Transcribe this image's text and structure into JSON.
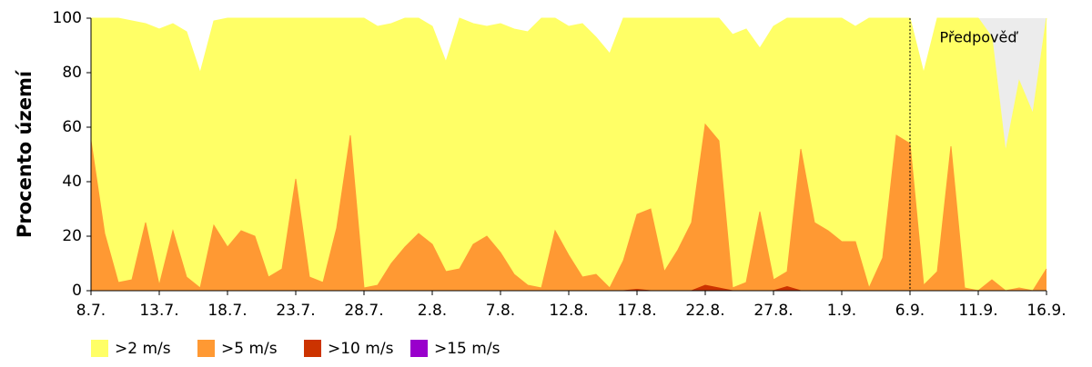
{
  "chart_data": {
    "type": "area",
    "y_label": "Procento území",
    "annotation": "Předpověď",
    "categories": [
      "8.7.",
      null,
      null,
      null,
      null,
      "13.7.",
      null,
      null,
      null,
      null,
      "18.7.",
      null,
      null,
      null,
      null,
      "23.7.",
      null,
      null,
      null,
      null,
      "28.7.",
      null,
      null,
      null,
      null,
      "2.8.",
      null,
      null,
      null,
      null,
      "7.8.",
      null,
      null,
      null,
      null,
      "12.8.",
      null,
      null,
      null,
      null,
      "17.8.",
      null,
      null,
      null,
      null,
      "22.8.",
      null,
      null,
      null,
      null,
      "27.8.",
      null,
      null,
      null,
      null,
      "1.9.",
      null,
      null,
      null,
      null,
      "6.9.",
      null,
      null,
      null,
      null,
      "11.9.",
      null,
      null,
      null,
      null,
      "16.9."
    ],
    "series": [
      {
        "name": ">2 m/s",
        "color": "#ffff66",
        "values": [
          100,
          100,
          100,
          99,
          98,
          96,
          98,
          95,
          80,
          99,
          100,
          100,
          100,
          100,
          100,
          100,
          100,
          100,
          100,
          100,
          100,
          97,
          98,
          100,
          100,
          97,
          84,
          100,
          98,
          97,
          98,
          96,
          95,
          100,
          100,
          97,
          98,
          93,
          87,
          100,
          100,
          100,
          100,
          100,
          100,
          100,
          100,
          94,
          96,
          89,
          97,
          100,
          100,
          100,
          100,
          100,
          97,
          100,
          100,
          100,
          100,
          80,
          100,
          100,
          100,
          100,
          93,
          51,
          77,
          65,
          100
        ]
      },
      {
        "name": ">5 m/s",
        "color": "#ff9933",
        "values": [
          55,
          21,
          3,
          4,
          25,
          2,
          22,
          5,
          1,
          24,
          16,
          22,
          20,
          5,
          8,
          41,
          5,
          3,
          23,
          57,
          1,
          2,
          10,
          16,
          21,
          17,
          7,
          8,
          17,
          20,
          14,
          6,
          2,
          1,
          22,
          13,
          5,
          6,
          1,
          11,
          28,
          30,
          7,
          15,
          25,
          61,
          55,
          1,
          3,
          29,
          4,
          7,
          52,
          25,
          22,
          18,
          18,
          1,
          12,
          57,
          54,
          2,
          7,
          53,
          1,
          0,
          4,
          0,
          1,
          0,
          8
        ]
      },
      {
        "name": ">10 m/s",
        "color": "#cc3300",
        "values": [
          0,
          0,
          0,
          0,
          0,
          0,
          0,
          0,
          0,
          0,
          0,
          0,
          0,
          0,
          0,
          0,
          0,
          0,
          0,
          0,
          0,
          0,
          0,
          0,
          0,
          0,
          0,
          0,
          0,
          0,
          0,
          0,
          0,
          0,
          0,
          0,
          0,
          0,
          0,
          0,
          0.5,
          0,
          0,
          0,
          0,
          2,
          1,
          0,
          0,
          0,
          0,
          1.5,
          0,
          0,
          0,
          0,
          0,
          0,
          0,
          0,
          0,
          0,
          0,
          0,
          0,
          0,
          0,
          0,
          0,
          0,
          0
        ]
      },
      {
        "name": ">15 m/s",
        "color": "#9900cc",
        "values": [
          0,
          0,
          0,
          0,
          0,
          0,
          0,
          0,
          0,
          0,
          0,
          0,
          0,
          0,
          0,
          0,
          0,
          0,
          0,
          0,
          0,
          0,
          0,
          0,
          0,
          0,
          0,
          0,
          0,
          0,
          0,
          0,
          0,
          0,
          0,
          0,
          0,
          0,
          0,
          0,
          0,
          0,
          0,
          0,
          0,
          0,
          0,
          0,
          0,
          0,
          0,
          0,
          0,
          0,
          0,
          0,
          0,
          0,
          0,
          0,
          0,
          0,
          0,
          0,
          0,
          0,
          0,
          0,
          0,
          0,
          0
        ]
      }
    ],
    "ylim": [
      0,
      100
    ],
    "yticks": [
      0,
      20,
      40,
      60,
      80,
      100
    ],
    "grid": false
  }
}
